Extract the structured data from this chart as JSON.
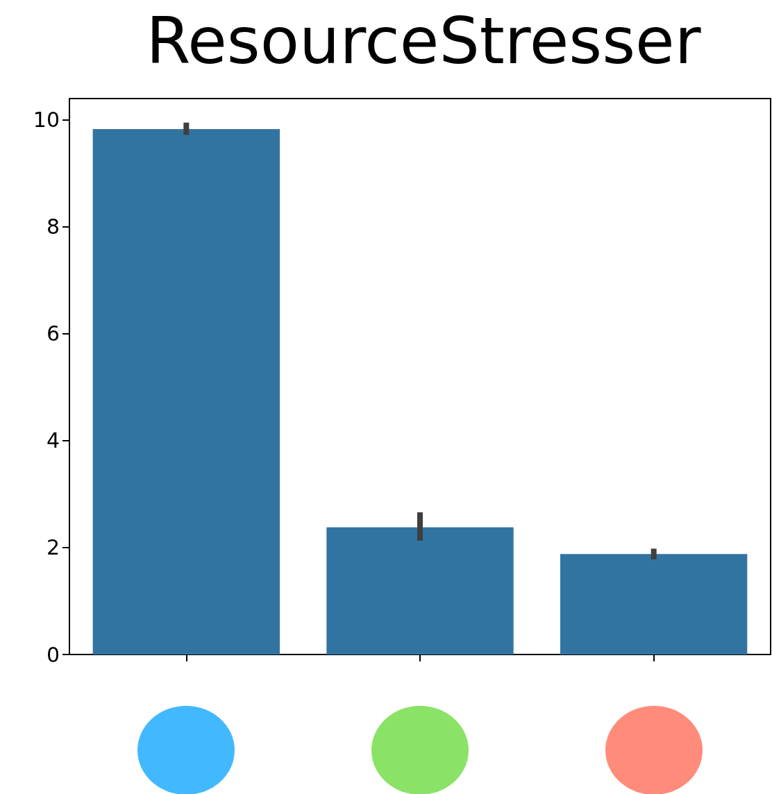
{
  "chart_data": {
    "type": "bar",
    "title": "ResourceStresser",
    "categories": [
      null,
      null,
      null
    ],
    "values": [
      9.83,
      2.38,
      1.88
    ],
    "errors": [
      [
        9.72,
        9.95
      ],
      [
        2.13,
        2.66
      ],
      [
        1.78,
        1.98
      ]
    ],
    "color": "#3274a1",
    "ylim": [
      0,
      10.4
    ],
    "yticks": [
      0,
      2,
      4,
      6,
      8,
      10
    ],
    "grid": false
  }
}
